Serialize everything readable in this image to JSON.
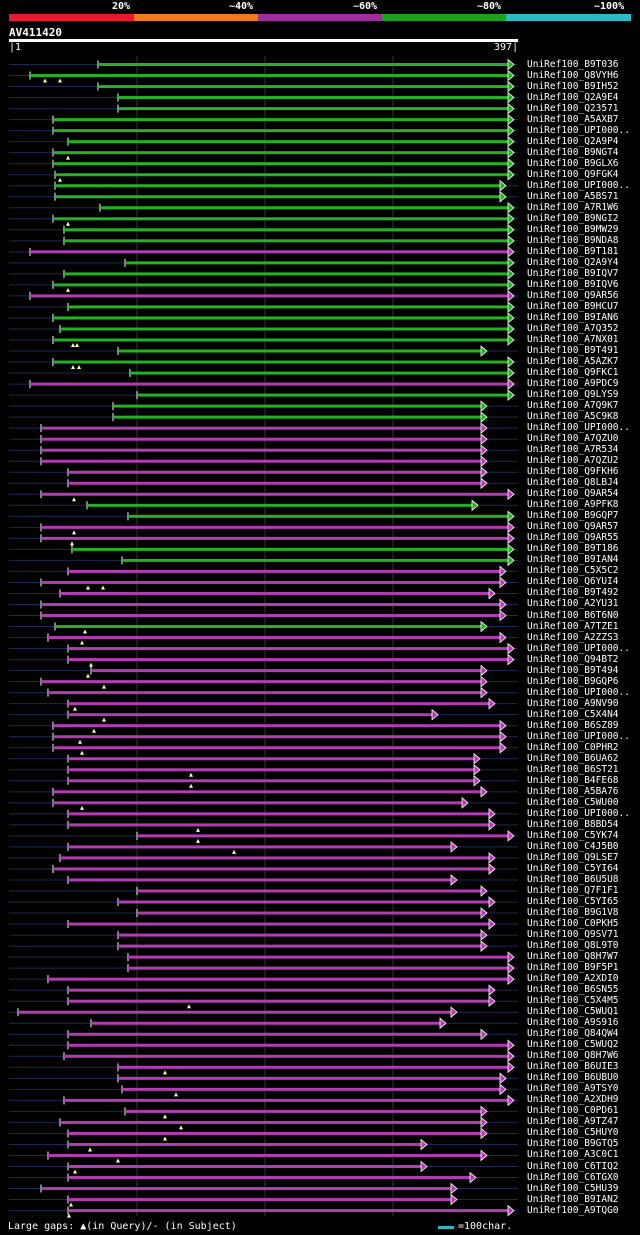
{
  "legend": [
    {
      "label": "20%",
      "color": "#e8192c"
    },
    {
      "label": "~40%",
      "color": "#ef7b1d"
    },
    {
      "label": "~60%",
      "color": "#9f2fa0"
    },
    {
      "label": "~80%",
      "color": "#20a020"
    },
    {
      "label": "~100%",
      "color": "#2bbbc4"
    }
  ],
  "title": "AV411420",
  "scale": {
    "start": "1",
    "end": "397"
  },
  "colors": {
    "green": "#22b222",
    "purple": "#b23cb2",
    "gap": "#1a2a55",
    "grid": "#333333"
  },
  "hits": [
    {
      "label": "UniRef100_B9T036",
      "color": "green",
      "start": 98,
      "end": 514,
      "arrow": true
    },
    {
      "label": "UniRef100_Q8VYH6",
      "color": "green",
      "start": 30,
      "end": 514,
      "arrow": true
    },
    {
      "label": "UniRef100_B9IH52",
      "color": "green",
      "start": 98,
      "end": 514,
      "arrow": true
    },
    {
      "label": "UniRef100_Q2A9E4",
      "color": "green",
      "start": 118,
      "end": 514,
      "arrow": true
    },
    {
      "label": "UniRef100_Q23571",
      "color": "green",
      "start": 118,
      "end": 514,
      "arrow": true
    },
    {
      "label": "UniRef100_A5AXB7",
      "color": "green",
      "start": 53,
      "end": 514,
      "arrow": true
    },
    {
      "label": "UniRef100_UPI000..",
      "color": "green",
      "start": 53,
      "end": 514,
      "arrow": true
    },
    {
      "label": "UniRef100_Q2A9P4",
      "color": "green",
      "start": 68,
      "end": 514,
      "arrow": true
    },
    {
      "label": "UniRef100_B9NGT4",
      "color": "green",
      "start": 53,
      "end": 514,
      "arrow": true
    },
    {
      "label": "UniRef100_B9GLX6",
      "color": "green",
      "start": 53,
      "end": 514,
      "arrow": true
    },
    {
      "label": "UniRef100_Q9FGK4",
      "color": "green",
      "start": 55,
      "end": 514,
      "arrow": true
    },
    {
      "label": "UniRef100_UPI000..",
      "color": "green",
      "start": 55,
      "end": 506,
      "arrow": true
    },
    {
      "label": "UniRef100_A5BS71",
      "color": "green",
      "start": 55,
      "end": 506,
      "arrow": true
    },
    {
      "label": "UniRef100_A7R1W6",
      "color": "green",
      "start": 100,
      "end": 514,
      "arrow": true
    },
    {
      "label": "UniRef100_B9NGI2",
      "color": "green",
      "start": 53,
      "end": 514,
      "arrow": true
    },
    {
      "label": "UniRef100_B9MW29",
      "color": "green",
      "start": 64,
      "end": 514,
      "arrow": true
    },
    {
      "label": "UniRef100_B9NDA8",
      "color": "green",
      "start": 64,
      "end": 514,
      "arrow": true
    },
    {
      "label": "UniRef100_B9T181",
      "color": "purple",
      "start": 30,
      "end": 514,
      "arrow": true
    },
    {
      "label": "UniRef100_Q2A9Y4",
      "color": "green",
      "start": 125,
      "end": 514,
      "arrow": true
    },
    {
      "label": "UniRef100_B9IQV7",
      "color": "green",
      "start": 64,
      "end": 514,
      "arrow": true
    },
    {
      "label": "UniRef100_B9IQV6",
      "color": "green",
      "start": 53,
      "end": 514,
      "arrow": true
    },
    {
      "label": "UniRef100_Q9AR56",
      "color": "purple",
      "start": 30,
      "end": 514,
      "arrow": true
    },
    {
      "label": "UniRef100_B9HCU7",
      "color": "green",
      "start": 68,
      "end": 514,
      "arrow": true
    },
    {
      "label": "UniRef100_B9IAN6",
      "color": "green",
      "start": 53,
      "end": 514,
      "arrow": true
    },
    {
      "label": "UniRef100_A7Q352",
      "color": "green",
      "start": 60,
      "end": 514,
      "arrow": true
    },
    {
      "label": "UniRef100_A7NX01",
      "color": "green",
      "start": 53,
      "end": 514,
      "arrow": true
    },
    {
      "label": "UniRef100_B9T491",
      "color": "green",
      "start": 118,
      "end": 487,
      "arrow": true
    },
    {
      "label": "UniRef100_A5AZK7",
      "color": "green",
      "start": 53,
      "end": 514,
      "arrow": true
    },
    {
      "label": "UniRef100_Q9FKC1",
      "color": "green",
      "start": 130,
      "end": 514,
      "arrow": true
    },
    {
      "label": "UniRef100_A9PDC9",
      "color": "purple",
      "start": 30,
      "end": 514,
      "arrow": true
    },
    {
      "label": "UniRef100_Q9LYS9",
      "color": "green",
      "start": 137,
      "end": 514,
      "arrow": true
    },
    {
      "label": "UniRef100_A7Q9K7",
      "color": "green",
      "start": 113,
      "end": 487,
      "arrow": true
    },
    {
      "label": "UniRef100_A5C9K8",
      "color": "green",
      "start": 113,
      "end": 487,
      "arrow": true
    },
    {
      "label": "UniRef100_UPI000..",
      "color": "purple",
      "start": 41,
      "end": 487,
      "arrow": true
    },
    {
      "label": "UniRef100_A7QZU0",
      "color": "purple",
      "start": 41,
      "end": 487,
      "arrow": true
    },
    {
      "label": "UniRef100_A7R534",
      "color": "purple",
      "start": 41,
      "end": 487,
      "arrow": true
    },
    {
      "label": "UniRef100_A7QZU2",
      "color": "purple",
      "start": 41,
      "end": 487,
      "arrow": true
    },
    {
      "label": "UniRef100_Q9FKH6",
      "color": "purple",
      "start": 68,
      "end": 487,
      "arrow": true
    },
    {
      "label": "UniRef100_Q8LBJ4",
      "color": "purple",
      "start": 68,
      "end": 487,
      "arrow": true
    },
    {
      "label": "UniRef100_Q9AR54",
      "color": "purple",
      "start": 41,
      "end": 514,
      "arrow": true
    },
    {
      "label": "UniRef100_A9PFK8",
      "color": "green",
      "start": 87,
      "end": 478,
      "arrow": true
    },
    {
      "label": "UniRef100_B9GQP7",
      "color": "green",
      "start": 128,
      "end": 514,
      "arrow": true
    },
    {
      "label": "UniRef100_Q9AR57",
      "color": "purple",
      "start": 41,
      "end": 514,
      "arrow": true
    },
    {
      "label": "UniRef100_Q9AR55",
      "color": "purple",
      "start": 41,
      "end": 514,
      "arrow": true
    },
    {
      "label": "UniRef100_B9T186",
      "color": "green",
      "start": 72,
      "end": 514,
      "arrow": true
    },
    {
      "label": "UniRef100_B9IAN4",
      "color": "green",
      "start": 122,
      "end": 514,
      "arrow": true
    },
    {
      "label": "UniRef100_C5X5C2",
      "color": "purple",
      "start": 68,
      "end": 506,
      "arrow": true
    },
    {
      "label": "UniRef100_Q6YUI4",
      "color": "purple",
      "start": 41,
      "end": 506,
      "arrow": true
    },
    {
      "label": "UniRef100_B9T492",
      "color": "purple",
      "start": 60,
      "end": 495,
      "arrow": true
    },
    {
      "label": "UniRef100_A2YU31",
      "color": "purple",
      "start": 41,
      "end": 506,
      "arrow": true
    },
    {
      "label": "UniRef100_B6T6N0",
      "color": "purple",
      "start": 41,
      "end": 506,
      "arrow": true
    },
    {
      "label": "UniRef100_A7TZE1",
      "color": "green",
      "start": 55,
      "end": 487,
      "arrow": true
    },
    {
      "label": "UniRef100_A2ZZS3",
      "color": "purple",
      "start": 48,
      "end": 506,
      "arrow": true
    },
    {
      "label": "UniRef100_UPI000..",
      "color": "purple",
      "start": 68,
      "end": 514,
      "arrow": true
    },
    {
      "label": "UniRef100_Q94BT2",
      "color": "purple",
      "start": 68,
      "end": 514,
      "arrow": true
    },
    {
      "label": "UniRef100_B9T494",
      "color": "purple",
      "start": 91,
      "end": 487,
      "arrow": true
    },
    {
      "label": "UniRef100_B9GQP6",
      "color": "purple",
      "start": 41,
      "end": 487,
      "arrow": true
    },
    {
      "label": "UniRef100_UPI000..",
      "color": "purple",
      "start": 48,
      "end": 487,
      "arrow": true
    },
    {
      "label": "UniRef100_A9NV90",
      "color": "purple",
      "start": 68,
      "end": 495,
      "arrow": true
    },
    {
      "label": "UniRef100_C5X4N4",
      "color": "purple",
      "start": 68,
      "end": 438,
      "arrow": true
    },
    {
      "label": "UniRef100_B6SZ89",
      "color": "purple",
      "start": 53,
      "end": 506,
      "arrow": true
    },
    {
      "label": "UniRef100_UPI000..",
      "color": "purple",
      "start": 53,
      "end": 506,
      "arrow": true
    },
    {
      "label": "UniRef100_C0PHR2",
      "color": "purple",
      "start": 53,
      "end": 506,
      "arrow": true
    },
    {
      "label": "UniRef100_B6UA62",
      "color": "purple",
      "start": 68,
      "end": 480,
      "arrow": true
    },
    {
      "label": "UniRef100_B6ST21",
      "color": "purple",
      "start": 68,
      "end": 480,
      "arrow": true
    },
    {
      "label": "UniRef100_B4FE68",
      "color": "purple",
      "start": 68,
      "end": 480,
      "arrow": true
    },
    {
      "label": "UniRef100_A5BA76",
      "color": "purple",
      "start": 53,
      "end": 487,
      "arrow": true
    },
    {
      "label": "UniRef100_C5WU00",
      "color": "purple",
      "start": 53,
      "end": 468,
      "arrow": true
    },
    {
      "label": "UniRef100_UPI000..",
      "color": "purple",
      "start": 68,
      "end": 495,
      "arrow": true
    },
    {
      "label": "UniRef100_B8BD54",
      "color": "purple",
      "start": 68,
      "end": 495,
      "arrow": true
    },
    {
      "label": "UniRef100_C5YK74",
      "color": "purple",
      "start": 137,
      "end": 514,
      "arrow": true
    },
    {
      "label": "UniRef100_C4J5B0",
      "color": "purple",
      "start": 68,
      "end": 457,
      "arrow": true
    },
    {
      "label": "UniRef100_Q9LSE7",
      "color": "purple",
      "start": 60,
      "end": 495,
      "arrow": true
    },
    {
      "label": "UniRef100_C5YI64",
      "color": "purple",
      "start": 53,
      "end": 495,
      "arrow": true
    },
    {
      "label": "UniRef100_B6U5U8",
      "color": "purple",
      "start": 68,
      "end": 457,
      "arrow": true
    },
    {
      "label": "UniRef100_Q7F1F1",
      "color": "purple",
      "start": 137,
      "end": 487,
      "arrow": true
    },
    {
      "label": "UniRef100_C5YI65",
      "color": "purple",
      "start": 118,
      "end": 495,
      "arrow": true
    },
    {
      "label": "UniRef100_B9G1V8",
      "color": "purple",
      "start": 137,
      "end": 487,
      "arrow": true
    },
    {
      "label": "UniRef100_C0PKH5",
      "color": "purple",
      "start": 68,
      "end": 495,
      "arrow": true
    },
    {
      "label": "UniRef100_Q9SV71",
      "color": "purple",
      "start": 118,
      "end": 487,
      "arrow": true
    },
    {
      "label": "UniRef100_Q8L9T0",
      "color": "purple",
      "start": 118,
      "end": 487,
      "arrow": true
    },
    {
      "label": "UniRef100_Q8H7W7",
      "color": "purple",
      "start": 128,
      "end": 514,
      "arrow": true
    },
    {
      "label": "UniRef100_B9F5P1",
      "color": "purple",
      "start": 128,
      "end": 514,
      "arrow": true
    },
    {
      "label": "UniRef100_A2XDI0",
      "color": "purple",
      "start": 48,
      "end": 514,
      "arrow": true
    },
    {
      "label": "UniRef100_B6SN55",
      "color": "purple",
      "start": 68,
      "end": 495,
      "arrow": true
    },
    {
      "label": "UniRef100_C5X4M5",
      "color": "purple",
      "start": 68,
      "end": 495,
      "arrow": true
    },
    {
      "label": "UniRef100_C5WUQ1",
      "color": "purple",
      "start": 18,
      "end": 457,
      "arrow": true
    },
    {
      "label": "UniRef100_A9S916",
      "color": "purple",
      "start": 91,
      "end": 446,
      "arrow": true
    },
    {
      "label": "UniRef100_Q84QW4",
      "color": "purple",
      "start": 68,
      "end": 487,
      "arrow": true
    },
    {
      "label": "UniRef100_C5WUQ2",
      "color": "purple",
      "start": 68,
      "end": 514,
      "arrow": true
    },
    {
      "label": "UniRef100_Q8H7W6",
      "color": "purple",
      "start": 64,
      "end": 514,
      "arrow": true
    },
    {
      "label": "UniRef100_B6UIE3",
      "color": "purple",
      "start": 118,
      "end": 514,
      "arrow": true
    },
    {
      "label": "UniRef100_B6UBU0",
      "color": "purple",
      "start": 118,
      "end": 506,
      "arrow": true
    },
    {
      "label": "UniRef100_A9TSY0",
      "color": "purple",
      "start": 122,
      "end": 506,
      "arrow": true
    },
    {
      "label": "UniRef100_A2XDH9",
      "color": "purple",
      "start": 64,
      "end": 514,
      "arrow": true
    },
    {
      "label": "UniRef100_C0PD61",
      "color": "purple",
      "start": 125,
      "end": 487,
      "arrow": true
    },
    {
      "label": "UniRef100_A9TZ47",
      "color": "purple",
      "start": 60,
      "end": 487,
      "arrow": true
    },
    {
      "label": "UniRef100_C5HUY0",
      "color": "purple",
      "start": 68,
      "end": 487,
      "arrow": true
    },
    {
      "label": "UniRef100_B9GTQ5",
      "color": "purple",
      "start": 68,
      "end": 427,
      "arrow": true
    },
    {
      "label": "UniRef100_A3C0C1",
      "color": "purple",
      "start": 48,
      "end": 487,
      "arrow": true
    },
    {
      "label": "UniRef100_C6TIQ2",
      "color": "purple",
      "start": 68,
      "end": 427,
      "arrow": true
    },
    {
      "label": "UniRef100_C6TGX0",
      "color": "purple",
      "start": 68,
      "end": 476,
      "arrow": true
    },
    {
      "label": "UniRef100_C5HU39",
      "color": "purple",
      "start": 41,
      "end": 457,
      "arrow": true
    },
    {
      "label": "UniRef100_B9IAN2",
      "color": "purple",
      "start": 68,
      "end": 457,
      "arrow": true
    },
    {
      "label": "UniRef100_A9TQG0",
      "color": "purple",
      "start": 68,
      "end": 514,
      "arrow": true
    }
  ],
  "gap_marks": [
    {
      "row": 1,
      "xs": [
        45,
        60
      ]
    },
    {
      "row": 8,
      "xs": [
        68
      ]
    },
    {
      "row": 10,
      "xs": [
        60
      ]
    },
    {
      "row": 14,
      "xs": [
        68
      ]
    },
    {
      "row": 20,
      "xs": [
        68
      ]
    },
    {
      "row": 25,
      "xs": [
        73,
        77
      ]
    },
    {
      "row": 27,
      "xs": [
        73,
        79
      ]
    },
    {
      "row": 39,
      "xs": [
        74
      ]
    },
    {
      "row": 42,
      "xs": [
        74
      ]
    },
    {
      "row": 43,
      "xs": [
        72
      ]
    },
    {
      "row": 47,
      "xs": [
        88,
        103
      ]
    },
    {
      "row": 51,
      "xs": [
        85
      ]
    },
    {
      "row": 52,
      "xs": [
        82
      ]
    },
    {
      "row": 54,
      "xs": [
        91
      ]
    },
    {
      "row": 55,
      "xs": [
        88
      ]
    },
    {
      "row": 56,
      "xs": [
        104
      ]
    },
    {
      "row": 58,
      "xs": [
        75
      ]
    },
    {
      "row": 59,
      "xs": [
        104
      ]
    },
    {
      "row": 60,
      "xs": [
        94
      ]
    },
    {
      "row": 61,
      "xs": [
        80
      ]
    },
    {
      "row": 62,
      "xs": [
        82
      ]
    },
    {
      "row": 64,
      "xs": [
        191
      ]
    },
    {
      "row": 65,
      "xs": [
        191
      ]
    },
    {
      "row": 67,
      "xs": [
        82
      ]
    },
    {
      "row": 69,
      "xs": [
        198
      ]
    },
    {
      "row": 70,
      "xs": [
        198
      ]
    },
    {
      "row": 71,
      "xs": [
        234
      ]
    },
    {
      "row": 85,
      "xs": [
        189
      ]
    },
    {
      "row": 91,
      "xs": [
        165
      ]
    },
    {
      "row": 93,
      "xs": [
        176
      ]
    },
    {
      "row": 95,
      "xs": [
        165
      ]
    },
    {
      "row": 96,
      "xs": [
        181
      ]
    },
    {
      "row": 97,
      "xs": [
        165
      ]
    },
    {
      "row": 98,
      "xs": [
        90
      ]
    },
    {
      "row": 99,
      "xs": [
        118
      ]
    },
    {
      "row": 100,
      "xs": [
        75
      ]
    },
    {
      "row": 103,
      "xs": [
        71
      ]
    },
    {
      "row": 104,
      "xs": [
        69
      ]
    }
  ],
  "footer": {
    "gaps_text": "Large gaps: ▲(in Query)/- (in Subject)",
    "scale_text": "=100char."
  }
}
